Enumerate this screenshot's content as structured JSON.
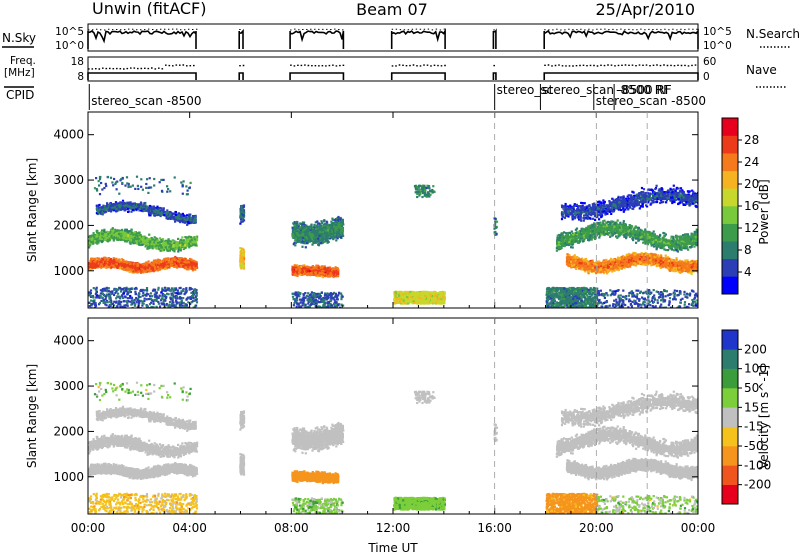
{
  "header": {
    "station": "Unwin (fitACF)",
    "beam": "Beam 07",
    "date": "25/Apr/2010"
  },
  "strip_labels": {
    "nsky": "N.Sky",
    "nsearch": "N.Search",
    "freq": "Freq.",
    "freq_unit": "[MHz]",
    "nave": "Nave",
    "cpid": "CPID",
    "noise_ticks_left": [
      "10^5",
      "10^0"
    ],
    "noise_ticks_right": [
      "10^5",
      "10^0"
    ],
    "freq_ticks": [
      "18",
      "8"
    ],
    "nave_ticks": [
      "60",
      "0"
    ]
  },
  "cpid_labels": [
    {
      "text": "stereo_scan -8500",
      "at_hour": 0.05,
      "row": 2
    },
    {
      "text": "stereo_sc",
      "at_hour": 16.0,
      "row": 1
    },
    {
      "text": "stereo_scan -8500 RF",
      "at_hour": 17.8,
      "row": 1
    },
    {
      "text": "-8500 RF",
      "at_hour": 20.7,
      "row": 1
    },
    {
      "text": "stereo_scan -8500",
      "at_hour": 19.9,
      "row": 2
    }
  ],
  "chart_data": [
    {
      "type": "heatmap",
      "parameter": "power",
      "xlabel": "",
      "ylabel": "Slant Range [km]",
      "xlim": [
        0,
        24
      ],
      "ylim": [
        180,
        4500
      ],
      "yticks": [
        "4000",
        "3000",
        "2000",
        "1000"
      ],
      "ytick_values": [
        4000,
        3000,
        2000,
        1000
      ],
      "colorbar": {
        "label": "Power [dB]",
        "ticks": [
          "4",
          "8",
          "12",
          "16",
          "20",
          "24",
          "28"
        ],
        "tick_values": [
          4,
          8,
          12,
          16,
          20,
          24,
          28
        ],
        "range": [
          0,
          32
        ],
        "colors": [
          "#0000ff",
          "#2b3eb5",
          "#2c7d6e",
          "#3d9b4c",
          "#79c93d",
          "#c8d72b",
          "#f5b321",
          "#f57a1c",
          "#ec3b1b",
          "#e6001d"
        ]
      },
      "data_intervals_hours": [
        [
          0,
          4.25
        ],
        [
          5.95,
          6.1
        ],
        [
          7.95,
          10.05
        ],
        [
          11.95,
          14.05
        ],
        [
          15.95,
          16.05
        ],
        [
          17.95,
          24
        ]
      ],
      "features": [
        {
          "name": "main band",
          "t_range": [
            0,
            4.25
          ],
          "range_km": [
            900,
            1450
          ],
          "power_db": 26
        },
        {
          "name": "upper band",
          "t_range": [
            0,
            4.25
          ],
          "range_km": [
            1500,
            2500
          ],
          "power_db": 14
        },
        {
          "name": "main band",
          "t_range": [
            8,
            9.7
          ],
          "range_km": [
            800,
            1300
          ],
          "power_db": 27
        },
        {
          "name": "upper band",
          "t_range": [
            8,
            10
          ],
          "range_km": [
            1400,
            2400
          ],
          "power_db": 10
        },
        {
          "name": "near range",
          "t_range": [
            12,
            14
          ],
          "range_km": [
            300,
            600
          ],
          "power_db": 18
        },
        {
          "name": "main band",
          "t_range": [
            18.5,
            24
          ],
          "range_km": [
            900,
            1700
          ],
          "power_db": 24
        },
        {
          "name": "upper band",
          "t_range": [
            18.5,
            24
          ],
          "range_km": [
            1500,
            3000
          ],
          "power_db": 12
        }
      ]
    },
    {
      "type": "heatmap",
      "parameter": "velocity",
      "xlabel": "Time UT",
      "ylabel": "Slant Range [km]",
      "xlim": [
        0,
        24
      ],
      "ylim": [
        180,
        4500
      ],
      "xticks": [
        "00:00",
        "04:00",
        "08:00",
        "12:00",
        "16:00",
        "20:00",
        "00:00"
      ],
      "xtick_values": [
        0,
        4,
        8,
        12,
        16,
        20,
        24
      ],
      "yticks": [
        "4000",
        "3000",
        "2000",
        "1000"
      ],
      "ytick_values": [
        4000,
        3000,
        2000,
        1000
      ],
      "colorbar": {
        "label": "Velocity [m s^-1]",
        "ticks": [
          "200",
          "100",
          "50",
          "15",
          "-15",
          "-50",
          "-100",
          "-200"
        ],
        "tick_values": [
          200,
          100,
          50,
          15,
          -15,
          -50,
          -100,
          -200
        ],
        "colors": [
          "#2035c9",
          "#2c7d6e",
          "#3a9c3a",
          "#7ccf3a",
          "#c0c0c0",
          "#f5c21d",
          "#f5951d",
          "#f0551d",
          "#e6001d"
        ]
      },
      "features": [
        {
          "name": "ground scatter",
          "t_range": [
            0,
            4.25
          ],
          "range_km": [
            900,
            2500
          ],
          "velocity": 0
        },
        {
          "name": "flow",
          "t_range": [
            8,
            9.7
          ],
          "range_km": [
            700,
            1400
          ],
          "velocity": -60
        },
        {
          "name": "near range",
          "t_range": [
            12,
            14
          ],
          "range_km": [
            300,
            600
          ],
          "velocity": 40
        },
        {
          "name": "near range",
          "t_range": [
            18,
            20
          ],
          "range_km": [
            200,
            600
          ],
          "velocity": -60
        },
        {
          "name": "ground scatter",
          "t_range": [
            18.5,
            24
          ],
          "range_km": [
            900,
            3000
          ],
          "velocity": 0
        }
      ]
    }
  ]
}
